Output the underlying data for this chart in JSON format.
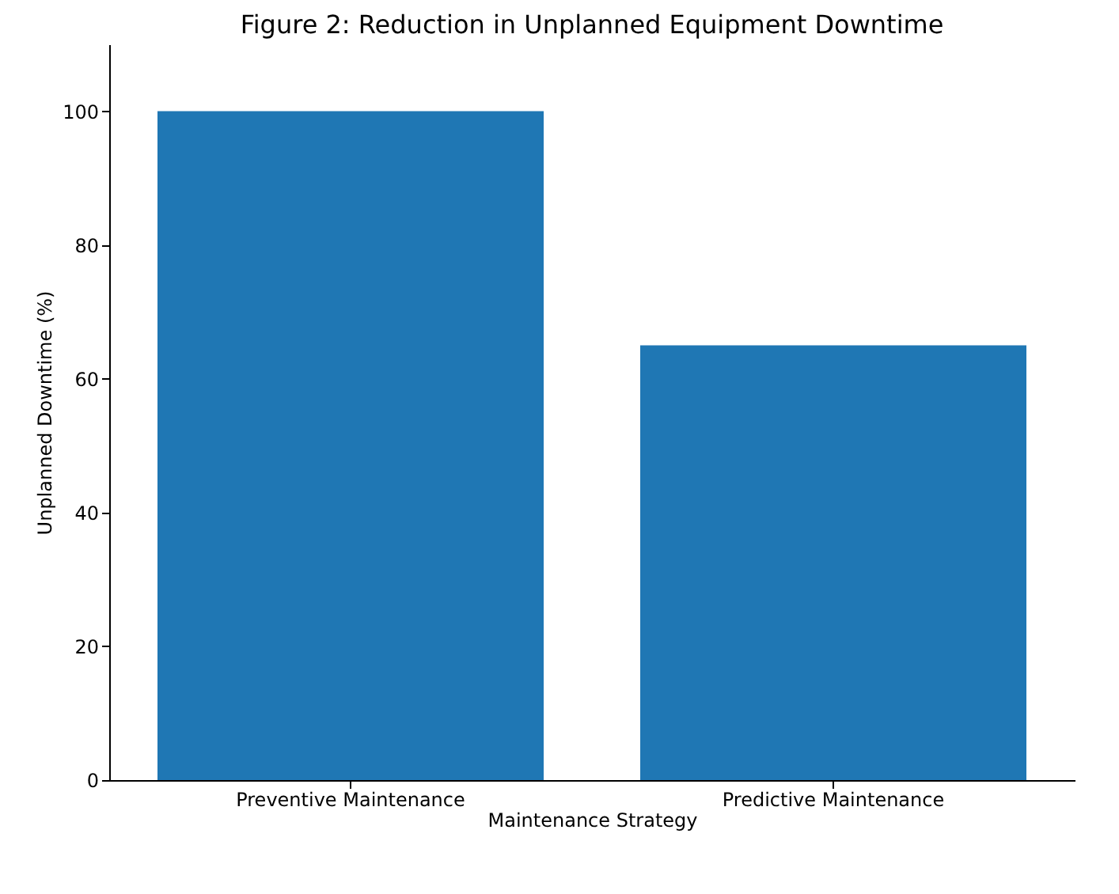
{
  "chart_data": {
    "type": "bar",
    "title": "Figure 2: Reduction in Unplanned Equipment Downtime",
    "xlabel": "Maintenance Strategy",
    "ylabel": "Unplanned Downtime (%)",
    "categories": [
      "Preventive Maintenance",
      "Predictive Maintenance"
    ],
    "values": [
      100,
      65
    ],
    "color": "#1f77b4",
    "ylim": [
      0,
      110
    ],
    "yticks": [
      0,
      20,
      40,
      60,
      80,
      100
    ],
    "grid": false
  }
}
